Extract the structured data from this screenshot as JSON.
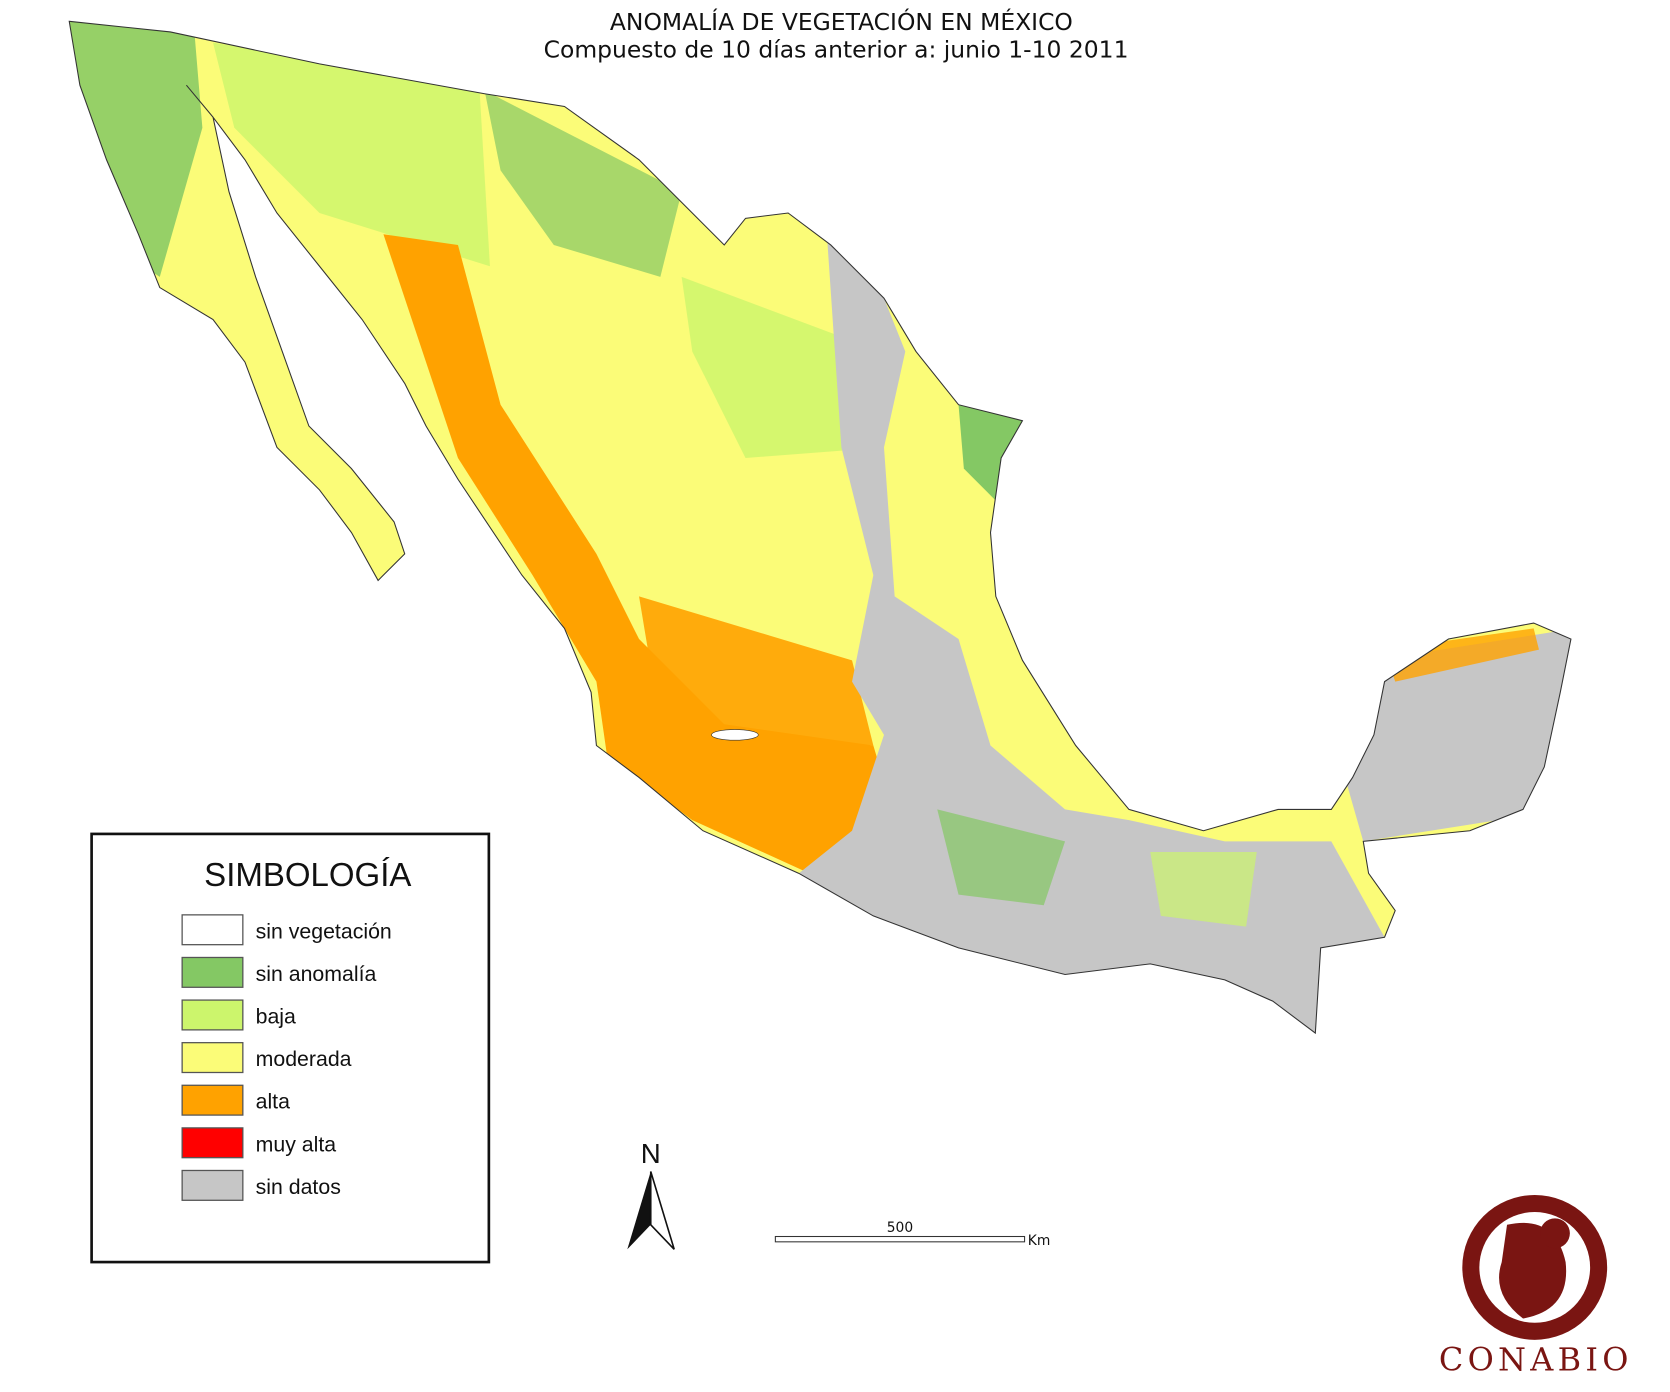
{
  "title": "ANOMALÍA DE VEGETACIÓN EN MÉXICO",
  "subtitle": "Compuesto de 10 días anterior a: junio 1-10 2011",
  "legend": {
    "title": "SIMBOLOGÍA",
    "items": [
      {
        "label": "sin vegetación",
        "color": "#ffffff"
      },
      {
        "label": "sin anomalía",
        "color": "#84c864"
      },
      {
        "label": "baja",
        "color": "#ccf56c"
      },
      {
        "label": "moderada",
        "color": "#fbfc78"
      },
      {
        "label": "alta",
        "color": "#ffa200"
      },
      {
        "label": "muy alta",
        "color": "#ff0000"
      },
      {
        "label": "sin datos",
        "color": "#c6c6c6"
      }
    ]
  },
  "north_arrow": {
    "label": "N"
  },
  "scale_bar": {
    "value": "500",
    "unit": "Km"
  },
  "logo": {
    "text": "CONABIO",
    "color": "#7a1512"
  }
}
